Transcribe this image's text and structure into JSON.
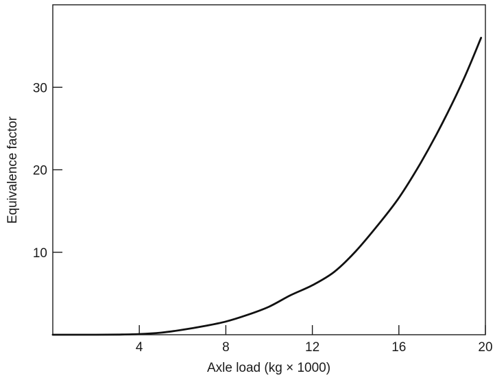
{
  "chart_data": {
    "type": "line",
    "title": "",
    "xlabel": "Axle load (kg × 1000)",
    "ylabel": "Equivalence factor",
    "xlim": [
      0,
      20
    ],
    "ylim": [
      0,
      40
    ],
    "x_ticks": [
      4,
      8,
      12,
      16,
      20
    ],
    "y_ticks": [
      10,
      20,
      30
    ],
    "grid": false,
    "legend": "none",
    "line_color": "#111111",
    "series": [
      {
        "x": [
          0,
          1,
          2,
          3,
          4,
          5,
          6,
          7,
          8,
          9,
          10,
          11,
          12,
          13,
          14,
          15,
          16,
          17,
          18,
          19,
          19.8
        ],
        "values": [
          0,
          0,
          0,
          0.02,
          0.08,
          0.25,
          0.6,
          1.05,
          1.6,
          2.4,
          3.4,
          4.8,
          6.0,
          7.6,
          10.1,
          13.2,
          16.6,
          20.8,
          25.6,
          31.0,
          36.0
        ]
      }
    ]
  }
}
